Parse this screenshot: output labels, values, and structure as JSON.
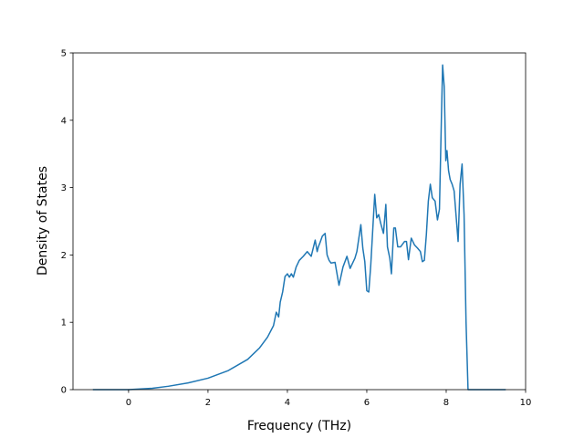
{
  "chart_data": {
    "type": "line",
    "title": "",
    "xlabel": "Frequency (THz)",
    "ylabel": "Density of States",
    "xlim": [
      -1.4,
      10.0
    ],
    "ylim": [
      0,
      5
    ],
    "xticks": [
      "0",
      "2",
      "4",
      "6",
      "8",
      "10"
    ],
    "yticks": [
      "0",
      "1",
      "2",
      "3",
      "4",
      "5"
    ],
    "grid": false,
    "series": [
      {
        "color": "#1f77b4",
        "x": [
          -0.9,
          0.0,
          0.3,
          0.6,
          1.0,
          1.5,
          2.0,
          2.5,
          3.0,
          3.3,
          3.5,
          3.65,
          3.72,
          3.78,
          3.82,
          3.88,
          3.94,
          4.0,
          4.05,
          4.1,
          4.15,
          4.22,
          4.3,
          4.4,
          4.5,
          4.6,
          4.7,
          4.75,
          4.78,
          4.82,
          4.88,
          4.95,
          5.0,
          5.05,
          5.1,
          5.2,
          5.3,
          5.4,
          5.5,
          5.58,
          5.62,
          5.7,
          5.75,
          5.8,
          5.85,
          5.9,
          5.95,
          6.0,
          6.05,
          6.1,
          6.2,
          6.25,
          6.3,
          6.35,
          6.42,
          6.48,
          6.52,
          6.58,
          6.62,
          6.68,
          6.72,
          6.78,
          6.85,
          6.95,
          7.0,
          7.05,
          7.12,
          7.2,
          7.28,
          7.35,
          7.4,
          7.45,
          7.5,
          7.55,
          7.6,
          7.65,
          7.72,
          7.78,
          7.83,
          7.88,
          7.91,
          7.95,
          7.99,
          8.02,
          8.06,
          8.1,
          8.15,
          8.2,
          8.3,
          8.35,
          8.4,
          8.45,
          8.5,
          8.55,
          8.6,
          8.65,
          8.7,
          8.8,
          9.0,
          9.2,
          9.5
        ],
        "y": [
          0.0,
          0.0,
          0.01,
          0.02,
          0.05,
          0.1,
          0.17,
          0.28,
          0.45,
          0.62,
          0.78,
          0.95,
          1.15,
          1.08,
          1.3,
          1.45,
          1.68,
          1.72,
          1.67,
          1.72,
          1.67,
          1.82,
          1.92,
          1.98,
          2.05,
          1.98,
          2.22,
          2.05,
          2.12,
          2.18,
          2.28,
          2.32,
          2.0,
          1.92,
          1.88,
          1.89,
          1.55,
          1.82,
          1.98,
          1.8,
          1.85,
          1.95,
          2.05,
          2.25,
          2.45,
          2.1,
          1.9,
          1.47,
          1.45,
          1.85,
          2.9,
          2.55,
          2.6,
          2.47,
          2.32,
          2.75,
          2.12,
          1.95,
          1.72,
          2.4,
          2.4,
          2.12,
          2.12,
          2.2,
          2.2,
          1.93,
          2.25,
          2.15,
          2.1,
          2.05,
          1.9,
          1.92,
          2.3,
          2.8,
          3.05,
          2.85,
          2.8,
          2.52,
          2.68,
          4.05,
          4.82,
          4.5,
          3.4,
          3.55,
          3.25,
          3.12,
          3.05,
          2.95,
          2.2,
          3.05,
          3.35,
          2.6,
          1.0,
          0.0,
          0.0,
          0.0,
          0.0,
          0.0,
          0.0,
          0.0,
          0.0
        ]
      }
    ]
  }
}
